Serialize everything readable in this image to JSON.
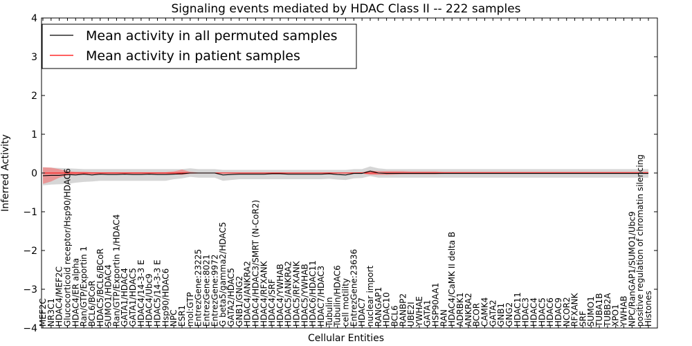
{
  "chart_data": {
    "type": "line",
    "title": "Signaling events mediated by HDAC Class II -- 222 samples",
    "xlabel": "Cellular Entities",
    "ylabel": "Inferred Activity",
    "ylim": [
      -4,
      4
    ],
    "yticks": [
      "4",
      "3",
      "2",
      "1",
      "0",
      "−1",
      "−2",
      "−3",
      "−4"
    ],
    "legend_position": "top-left",
    "colors": {
      "permuted": "#000000",
      "patient": "#ff0000",
      "patient_band": "#ee8080",
      "permuted_band": "#b4b4b4"
    },
    "categories": [
      "MEF2C",
      "NR3C1",
      "HDAC4/MEF2C",
      "Glucocorticoid receptor/Hsp90/HDAC6",
      "HDAC4/ER alpha",
      "Ran/GTP/Exportin 1",
      "BCL6/BCoR",
      "HDAC5/BCL6/BCoR",
      "SUMO1/HDAC4",
      "Ran/GTP/Exportin 1/HDAC4",
      "GATA1/HDAC4",
      "GATA1/HDAC5",
      "HDAC4/14-3-3 E",
      "HDAC4/Ubc9",
      "HDAC5/14-3-3 E",
      "Hsp90/HDAC6",
      "NPC",
      "ESR1",
      "mol:GTP",
      "EntrezGene:23225",
      "EntrezGene:8021",
      "EntrezGene:9972",
      "G beta5/gamma2/HDAC5",
      "GATA2/HDAC5",
      "GNB1/GNG2",
      "HDAC4/ANKRA2",
      "HDAC4/HDAC3/SMRT (N-CoR2)",
      "HDAC4/RFXANK",
      "HDAC4/SRF",
      "HDAC4/YWHAB",
      "HDAC5/ANKRA2",
      "HDAC5/RFXANK",
      "HDAC5/YWHAB",
      "HDAC6/HDAC11",
      "HDAC7/HDAC3",
      "Tubulin",
      "Tubulin/HDAC6",
      "cell motility",
      "EntrezGene:23636",
      "HDAC7",
      "nuclear import",
      "RANGAP1",
      "HDAC10",
      "BCL6",
      "RANBP2",
      "UBE2I",
      "YWHAE",
      "GATA1",
      "HSP90AA1",
      "RAN",
      "HDAC4/CaMK II delta B",
      "ADRBK1",
      "ANKRA2",
      "BCOR",
      "CAMK4",
      "GATA2",
      "GNB1",
      "GNG2",
      "HDAC11",
      "HDAC3",
      "HDAC4",
      "HDAC5",
      "HDAC6",
      "HDAC9",
      "NCOR2",
      "RFXANK",
      "SRF",
      "SUMO1",
      "TUBA1B",
      "TUBB2A",
      "XPO1",
      "YWHAB",
      "NPC/RanGAP1/SUMO1/Ubc9",
      "positive regulation of chromatin silencing",
      "Histones"
    ],
    "series": [
      {
        "name": "Mean activity in all permuted samples",
        "color": "#000000",
        "values": [
          -0.07,
          -0.06,
          -0.06,
          -0.04,
          -0.05,
          -0.03,
          -0.05,
          -0.03,
          -0.04,
          -0.04,
          -0.03,
          -0.04,
          -0.04,
          -0.03,
          -0.04,
          -0.04,
          -0.03,
          -0.02,
          0.0,
          0.0,
          0.0,
          0.0,
          -0.05,
          -0.04,
          -0.03,
          -0.03,
          -0.03,
          -0.03,
          -0.02,
          -0.02,
          -0.03,
          -0.03,
          -0.03,
          -0.03,
          -0.03,
          -0.02,
          -0.04,
          -0.05,
          -0.01,
          -0.01,
          0.05,
          0.0,
          -0.01,
          -0.01,
          -0.01,
          -0.01,
          -0.01,
          -0.01,
          -0.01,
          -0.01,
          -0.01,
          -0.01,
          -0.01,
          -0.01,
          -0.01,
          -0.01,
          -0.01,
          -0.01,
          -0.01,
          -0.01,
          -0.01,
          -0.01,
          -0.01,
          -0.01,
          -0.01,
          -0.01,
          -0.01,
          -0.01,
          -0.01,
          -0.01,
          -0.01,
          -0.01,
          -0.01,
          -0.01,
          -0.01
        ],
        "band_lower": [
          -0.32,
          -0.3,
          -0.29,
          -0.28,
          -0.25,
          -0.23,
          -0.22,
          -0.2,
          -0.2,
          -0.2,
          -0.2,
          -0.2,
          -0.2,
          -0.2,
          -0.2,
          -0.2,
          -0.16,
          -0.14,
          -0.1,
          -0.12,
          -0.12,
          -0.12,
          -0.2,
          -0.18,
          -0.16,
          -0.16,
          -0.16,
          -0.16,
          -0.16,
          -0.16,
          -0.16,
          -0.16,
          -0.16,
          -0.16,
          -0.16,
          -0.15,
          -0.17,
          -0.18,
          -0.14,
          -0.13,
          -0.08,
          -0.12,
          -0.12,
          -0.12,
          -0.12,
          -0.12,
          -0.12,
          -0.12,
          -0.12,
          -0.12,
          -0.12,
          -0.12,
          -0.12,
          -0.12,
          -0.12,
          -0.12,
          -0.12,
          -0.12,
          -0.12,
          -0.12,
          -0.12,
          -0.12,
          -0.12,
          -0.12,
          -0.12,
          -0.12,
          -0.12,
          -0.12,
          -0.12,
          -0.12,
          -0.12,
          -0.12,
          -0.12,
          -0.12,
          -0.12
        ],
        "band_upper": [
          0.14,
          0.14,
          0.13,
          0.12,
          0.11,
          0.1,
          0.1,
          0.1,
          0.1,
          0.1,
          0.1,
          0.1,
          0.1,
          0.1,
          0.1,
          0.1,
          0.1,
          0.1,
          0.12,
          0.1,
          0.1,
          0.1,
          0.08,
          0.08,
          0.08,
          0.08,
          0.08,
          0.08,
          0.08,
          0.08,
          0.08,
          0.08,
          0.08,
          0.08,
          0.08,
          0.08,
          0.08,
          0.08,
          0.1,
          0.1,
          0.17,
          0.12,
          0.1,
          0.1,
          0.1,
          0.1,
          0.1,
          0.1,
          0.1,
          0.1,
          0.1,
          0.1,
          0.1,
          0.1,
          0.1,
          0.1,
          0.1,
          0.1,
          0.1,
          0.1,
          0.1,
          0.1,
          0.1,
          0.1,
          0.1,
          0.1,
          0.1,
          0.1,
          0.1,
          0.1,
          0.1,
          0.1,
          0.1,
          0.1,
          0.1
        ]
      },
      {
        "name": "Mean activity in patient samples",
        "color": "#ff0000",
        "values": [
          0.0,
          0.0,
          0.0,
          0.0,
          0.0,
          0.0,
          0.0,
          0.0,
          0.0,
          0.0,
          0.0,
          0.0,
          0.0,
          0.0,
          0.0,
          0.0,
          0.0,
          0.0,
          0.0,
          0.0,
          0.0,
          0.0,
          0.0,
          0.0,
          0.0,
          0.0,
          0.0,
          0.0,
          0.0,
          0.0,
          0.0,
          0.0,
          0.0,
          0.0,
          0.0,
          0.0,
          0.0,
          0.0,
          0.0,
          0.0,
          0.0,
          0.0,
          0.0,
          0.0,
          0.0,
          0.0,
          0.0,
          0.0,
          0.0,
          0.0,
          0.0,
          0.0,
          0.0,
          0.0,
          0.0,
          0.0,
          0.0,
          0.0,
          0.0,
          0.0,
          0.0,
          0.0,
          0.0,
          0.0,
          0.0,
          0.0,
          0.0,
          0.0,
          0.0,
          0.0,
          0.0,
          0.0,
          0.0,
          0.0,
          0.0
        ],
        "band_lower": [
          -0.28,
          -0.22,
          -0.12,
          -0.06,
          -0.04,
          -0.03,
          -0.03,
          -0.02,
          -0.02,
          -0.02,
          -0.02,
          -0.02,
          -0.02,
          -0.02,
          -0.02,
          -0.02,
          -0.03,
          -0.05,
          -0.02,
          -0.01,
          -0.01,
          -0.01,
          -0.01,
          -0.01,
          -0.01,
          -0.01,
          -0.01,
          -0.01,
          -0.01,
          -0.01,
          -0.01,
          -0.01,
          -0.01,
          -0.01,
          -0.01,
          -0.01,
          -0.01,
          -0.01,
          -0.01,
          -0.01,
          -0.05,
          -0.05,
          -0.05,
          -0.04,
          -0.03,
          -0.03,
          -0.03,
          -0.03,
          -0.03,
          -0.02,
          -0.02,
          -0.02,
          -0.02,
          -0.02,
          -0.02,
          -0.02,
          -0.02,
          -0.02,
          -0.02,
          -0.02,
          -0.02,
          -0.02,
          -0.02,
          -0.02,
          -0.02,
          -0.02,
          -0.02,
          -0.02,
          -0.02,
          -0.02,
          -0.02,
          -0.02,
          -0.02,
          -0.02,
          -0.02
        ],
        "band_upper": [
          0.15,
          0.14,
          0.1,
          0.05,
          0.03,
          0.03,
          0.02,
          0.02,
          0.02,
          0.02,
          0.02,
          0.02,
          0.02,
          0.02,
          0.02,
          0.02,
          0.04,
          0.09,
          0.03,
          0.01,
          0.01,
          0.01,
          0.01,
          0.01,
          0.01,
          0.01,
          0.01,
          0.01,
          0.01,
          0.01,
          0.01,
          0.01,
          0.01,
          0.01,
          0.01,
          0.01,
          0.01,
          0.01,
          0.01,
          0.02,
          0.06,
          0.05,
          0.05,
          0.05,
          0.05,
          0.04,
          0.04,
          0.04,
          0.04,
          0.03,
          0.03,
          0.03,
          0.03,
          0.03,
          0.03,
          0.03,
          0.03,
          0.03,
          0.03,
          0.03,
          0.03,
          0.03,
          0.03,
          0.03,
          0.03,
          0.03,
          0.03,
          0.03,
          0.03,
          0.03,
          0.03,
          0.03,
          0.03,
          0.03,
          0.03
        ]
      }
    ]
  }
}
